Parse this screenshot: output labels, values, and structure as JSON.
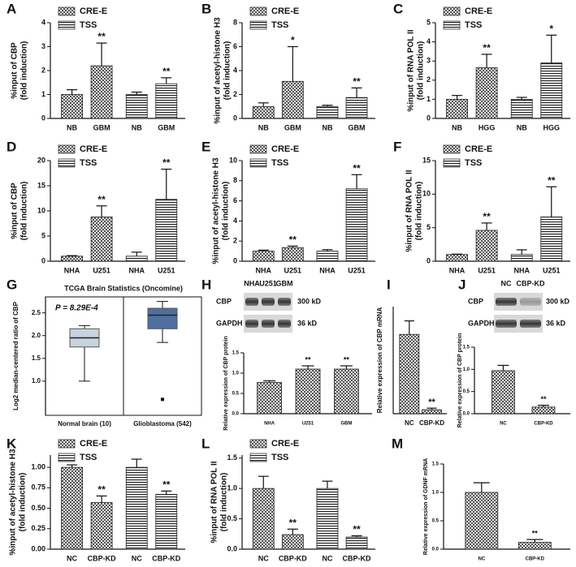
{
  "chart_data": [
    {
      "type": "bar",
      "panel": "A",
      "ylabel": [
        "%input of CBP",
        "(fold induction)"
      ],
      "categories": [
        "NB",
        "GBM",
        "NB",
        "GBM"
      ],
      "series": [
        {
          "name": "CRE-E",
          "pattern": "checker",
          "values": [
            1.0,
            2.2,
            null,
            null
          ],
          "errors": [
            0.2,
            0.95,
            null,
            null
          ]
        },
        {
          "name": "TSS",
          "pattern": "stripes",
          "values": [
            null,
            null,
            1.0,
            1.45
          ],
          "errors": [
            null,
            null,
            0.1,
            0.25
          ]
        }
      ],
      "annotations": [
        null,
        "**",
        null,
        "**"
      ],
      "ylim": [
        0,
        4
      ],
      "yticks": [
        0,
        1,
        2,
        3,
        4
      ]
    },
    {
      "type": "bar",
      "panel": "B",
      "ylabel": [
        "%input of acetyl-histone H3",
        "(fold induction)"
      ],
      "categories": [
        "NB",
        "GBM",
        "NB",
        "GBM"
      ],
      "series": [
        {
          "name": "CRE-E",
          "pattern": "checker",
          "values": [
            1.0,
            3.1,
            null,
            null
          ],
          "errors": [
            0.3,
            2.9,
            null,
            null
          ]
        },
        {
          "name": "TSS",
          "pattern": "stripes",
          "values": [
            null,
            null,
            1.0,
            1.75
          ],
          "errors": [
            null,
            null,
            0.1,
            0.8
          ]
        }
      ],
      "annotations": [
        null,
        "*",
        null,
        "**"
      ],
      "ylim": [
        0,
        8
      ],
      "yticks": [
        0,
        2,
        4,
        6,
        8
      ]
    },
    {
      "type": "bar",
      "panel": "C",
      "ylabel": [
        "%input of RNA POL II",
        "(fold induction)"
      ],
      "categories": [
        "NB",
        "HGG",
        "NB",
        "HGG"
      ],
      "series": [
        {
          "name": "CRE-E",
          "pattern": "checker",
          "values": [
            1.0,
            2.65,
            null,
            null
          ],
          "errors": [
            0.2,
            0.7,
            null,
            null
          ]
        },
        {
          "name": "TSS",
          "pattern": "stripes",
          "values": [
            null,
            null,
            1.0,
            2.9
          ],
          "errors": [
            null,
            null,
            0.1,
            1.45
          ]
        }
      ],
      "annotations": [
        null,
        "**",
        null,
        "*"
      ],
      "ylim": [
        0,
        5
      ],
      "yticks": [
        0,
        1,
        2,
        3,
        4,
        5
      ]
    },
    {
      "type": "bar",
      "panel": "D",
      "ylabel": [
        "%input of CBP",
        "(fold induction)"
      ],
      "categories": [
        "NHA",
        "U251",
        "NHA",
        "U251"
      ],
      "series": [
        {
          "name": "CRE-E",
          "pattern": "checker",
          "values": [
            1.0,
            8.8,
            null,
            null
          ],
          "errors": [
            0.1,
            2.2,
            null,
            null
          ]
        },
        {
          "name": "TSS",
          "pattern": "stripes",
          "values": [
            null,
            null,
            1.0,
            12.3
          ],
          "errors": [
            null,
            null,
            0.8,
            6.0
          ]
        }
      ],
      "annotations": [
        null,
        "**",
        null,
        "**"
      ],
      "ylim": [
        0,
        20
      ],
      "yticks": [
        0,
        5,
        10,
        15,
        20
      ]
    },
    {
      "type": "bar",
      "panel": "E",
      "ylabel": [
        "%input of acetyl-histone H3",
        "(fold induction)"
      ],
      "categories": [
        "NHA",
        "U251",
        "NHA",
        "U251"
      ],
      "series": [
        {
          "name": "CRE-E",
          "pattern": "checker",
          "values": [
            1.0,
            1.35,
            null,
            null
          ],
          "errors": [
            0.1,
            0.15,
            null,
            null
          ]
        },
        {
          "name": "TSS",
          "pattern": "stripes",
          "values": [
            null,
            null,
            1.0,
            7.2
          ],
          "errors": [
            null,
            null,
            0.15,
            1.4
          ]
        }
      ],
      "annotations": [
        null,
        "**",
        null,
        "**"
      ],
      "ylim": [
        0,
        10
      ],
      "yticks": [
        0,
        2,
        4,
        6,
        8,
        10
      ]
    },
    {
      "type": "bar",
      "panel": "F",
      "ylabel": [
        "%input of RNA POL II",
        "(fold induction)"
      ],
      "categories": [
        "NHA",
        "U251",
        "NHA",
        "U251"
      ],
      "series": [
        {
          "name": "CRE-E",
          "pattern": "checker",
          "values": [
            1.0,
            4.6,
            null,
            null
          ],
          "errors": [
            0.05,
            1.1,
            null,
            null
          ]
        },
        {
          "name": "TSS",
          "pattern": "stripes",
          "values": [
            null,
            null,
            1.0,
            6.6
          ],
          "errors": [
            null,
            null,
            0.7,
            4.5
          ]
        }
      ],
      "annotations": [
        null,
        "**",
        null,
        "**"
      ],
      "ylim": [
        0,
        15
      ],
      "yticks": [
        0,
        5,
        10,
        15
      ]
    },
    {
      "type": "box",
      "panel": "G",
      "title": "TCGA Brain Statistics (Oncomine)",
      "annotation": "P = 8.29E-4",
      "ylabel": "Log2 median-centered ratio of CBP",
      "categories": [
        "Normal brain (10)",
        "Glioblastoma (542)"
      ],
      "colors": [
        "#c8d3df",
        "#4f6f9f"
      ],
      "boxes": [
        {
          "min": 1.0,
          "q1": 1.75,
          "median": 1.95,
          "q3": 2.15,
          "max": 2.22,
          "outliers": []
        },
        {
          "min": 1.85,
          "q1": 2.15,
          "median": 2.45,
          "q3": 2.6,
          "max": 2.75,
          "outliers": [
            0.6
          ]
        }
      ],
      "ylim": [
        0.25,
        2.85
      ],
      "yticks": [
        {
          "value": 1,
          "label": "1.0"
        },
        {
          "value": 1.5,
          "label": "1.5"
        },
        {
          "value": 2,
          "label": "2.0"
        },
        {
          "value": 2.5,
          "label": "2.5"
        }
      ]
    },
    {
      "type": "bar",
      "panel": "H",
      "ylabel": "Relative expression of CBP protein",
      "categories": [
        "NHA",
        "U251",
        "GBM"
      ],
      "blot": {
        "lanes": [
          "NHA",
          "U251",
          "GBM"
        ],
        "rows": [
          "CBP",
          "GAPDH"
        ],
        "sizes": [
          "300 kD",
          "36 kD"
        ]
      },
      "pattern": "checker",
      "values": [
        0.77,
        1.1,
        1.1
      ],
      "errors": [
        0.04,
        0.08,
        0.08
      ],
      "annotations": [
        null,
        "**",
        "**"
      ],
      "ylim": [
        0,
        1.5
      ],
      "yticks": [
        {
          "value": 0,
          "label": "0.0"
        },
        {
          "value": 0.5,
          "label": "0.5"
        },
        {
          "value": 1,
          "label": "1.0"
        },
        {
          "value": 1.5,
          "label": "1.5"
        }
      ]
    },
    {
      "type": "bar",
      "panel": "I",
      "ylabel": "Relative expression of CBP mRNA",
      "categories": [
        "NC",
        "CBP-KD"
      ],
      "pattern": "checker",
      "values": [
        1.0,
        0.05
      ],
      "errors": [
        0.17,
        0.02
      ],
      "annotations": [
        null,
        "**"
      ],
      "ylim": [
        0,
        1.35
      ]
    },
    {
      "type": "bar",
      "panel": "J",
      "ylabel": "Relative expression of CBP protein",
      "categories": [
        "NC",
        "CBP-KD"
      ],
      "blot": {
        "lanes": [
          "NC",
          "CBP-KD"
        ],
        "rows": [
          "CBP",
          "GAPDH"
        ],
        "sizes": [
          "300 kD",
          "36 kD"
        ]
      },
      "pattern": "checker",
      "values": [
        0.97,
        0.15
      ],
      "errors": [
        0.12,
        0.04
      ],
      "annotations": [
        null,
        "**"
      ],
      "ylim": [
        0,
        1.5
      ],
      "yticks": [
        {
          "value": 0,
          "label": "0.0"
        },
        {
          "value": 0.5,
          "label": "0.5"
        },
        {
          "value": 1,
          "label": "1.0"
        },
        {
          "value": 1.5,
          "label": "1.5"
        }
      ]
    },
    {
      "type": "bar",
      "panel": "K",
      "ylabel": [
        "%input of acetyl-histone H3",
        "(fold induction)"
      ],
      "categories": [
        "NC",
        "CBP-KD",
        "NC",
        "CBP-KD"
      ],
      "series": [
        {
          "name": "CRE-E",
          "pattern": "checker",
          "values": [
            1.0,
            0.57,
            null,
            null
          ],
          "errors": [
            0.03,
            0.08,
            null,
            null
          ]
        },
        {
          "name": "TSS",
          "pattern": "stripes",
          "values": [
            null,
            null,
            1.0,
            0.67
          ],
          "errors": [
            null,
            null,
            0.1,
            0.04
          ]
        }
      ],
      "annotations": [
        null,
        "**",
        null,
        "**"
      ],
      "ylim": [
        0,
        1.15
      ],
      "yticks": [
        {
          "value": 0,
          "label": "0.00"
        },
        {
          "value": 0.25,
          "label": "0.25"
        },
        {
          "value": 0.5,
          "label": "0.50"
        },
        {
          "value": 0.75,
          "label": "0.75"
        },
        {
          "value": 1,
          "label": "1.00"
        }
      ]
    },
    {
      "type": "bar",
      "panel": "L",
      "ylabel": [
        "%input of RNA POL II",
        "(fold induction)"
      ],
      "categories": [
        "NC",
        "CBP-KD",
        "NC",
        "CBP-KD"
      ],
      "series": [
        {
          "name": "CRE-E",
          "pattern": "checker",
          "values": [
            1.0,
            0.24,
            null,
            null
          ],
          "errors": [
            0.2,
            0.09,
            null,
            null
          ]
        },
        {
          "name": "TSS",
          "pattern": "stripes",
          "values": [
            null,
            null,
            1.0,
            0.2
          ],
          "errors": [
            null,
            null,
            0.12,
            0.02
          ]
        }
      ],
      "annotations": [
        null,
        "**",
        null,
        "**"
      ],
      "ylim": [
        0,
        1.55
      ],
      "yticks": [
        {
          "value": 0,
          "label": "0.0"
        },
        {
          "value": 0.5,
          "label": "0.5"
        },
        {
          "value": 1,
          "label": "1.0"
        },
        {
          "value": 1.5,
          "label": "1.5"
        }
      ]
    },
    {
      "type": "bar",
      "panel": "M",
      "ylabel": "Relative expression of GDNF mRNA",
      "categories": [
        "NC",
        "CBP-KD"
      ],
      "pattern": "checker",
      "values": [
        1.0,
        0.12
      ],
      "errors": [
        0.17,
        0.05
      ],
      "annotations": [
        null,
        "**"
      ],
      "ylim": [
        0,
        1.5
      ],
      "yticks": [
        {
          "value": 0,
          "label": "0.0"
        },
        {
          "value": 0.5,
          "label": "0.5"
        },
        {
          "value": 1,
          "label": "1.0"
        },
        {
          "value": 1.5,
          "label": "1.5"
        }
      ]
    }
  ]
}
